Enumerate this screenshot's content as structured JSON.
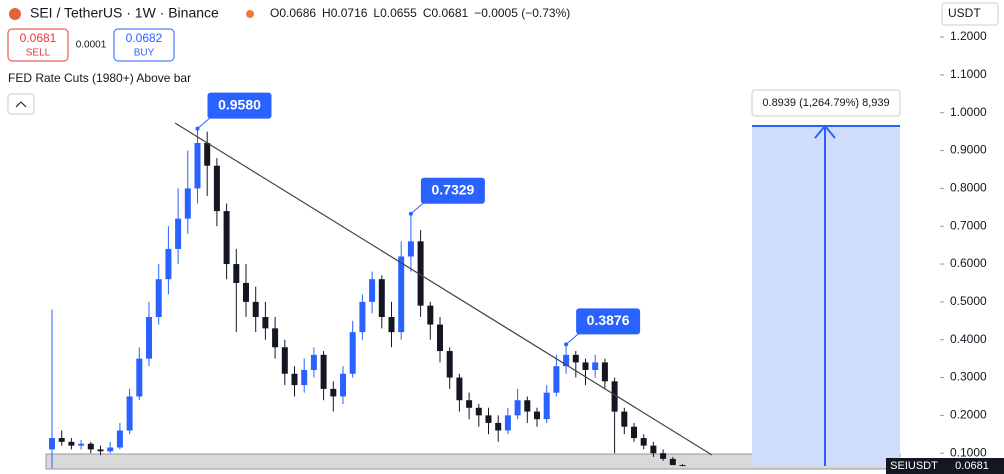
{
  "header": {
    "symbol": "SEI / TetherUS · 1W · Binance",
    "ohlc": [
      "O0.0686",
      "H0.0716",
      "L0.0655",
      "C0.0681",
      "−0.0005 (−0.73%)"
    ],
    "sell_price": "0.0681",
    "sell": "SELL",
    "spread": "0.0001",
    "buy_price": "0.0682",
    "buy": "BUY",
    "indicator": "FED Rate Cuts (1980+) Above bar",
    "currency": "USDT",
    "measure": "0.8939 (1,264.79%) 8,939",
    "price_tag": {
      "symbol": "SEIUSDT",
      "price": "0.0681"
    }
  },
  "chart_data": {
    "type": "candlestick",
    "up_color": "#2962ff",
    "down_color": "#131722",
    "open": [
      0.11,
      0.14,
      0.13,
      0.12,
      0.125,
      0.11,
      0.105,
      0.115,
      0.16,
      0.25,
      0.35,
      0.46,
      0.56,
      0.64,
      0.72,
      0.8,
      0.92,
      0.86,
      0.74,
      0.6,
      0.55,
      0.5,
      0.46,
      0.43,
      0.38,
      0.31,
      0.28,
      0.32,
      0.36,
      0.27,
      0.25,
      0.31,
      0.42,
      0.5,
      0.56,
      0.46,
      0.42,
      0.62,
      0.66,
      0.49,
      0.44,
      0.37,
      0.3,
      0.24,
      0.22,
      0.2,
      0.18,
      0.16,
      0.2,
      0.24,
      0.21,
      0.19,
      0.26,
      0.33,
      0.36,
      0.34,
      0.32,
      0.34,
      0.29,
      0.21,
      0.17,
      0.14,
      0.12,
      0.1,
      0.085,
      0.0686
    ],
    "high": [
      0.48,
      0.16,
      0.14,
      0.135,
      0.13,
      0.12,
      0.13,
      0.18,
      0.27,
      0.38,
      0.5,
      0.6,
      0.7,
      0.8,
      0.9,
      0.958,
      0.95,
      0.88,
      0.76,
      0.64,
      0.6,
      0.54,
      0.5,
      0.46,
      0.4,
      0.33,
      0.35,
      0.38,
      0.37,
      0.29,
      0.33,
      0.45,
      0.52,
      0.58,
      0.57,
      0.5,
      0.66,
      0.7329,
      0.69,
      0.5,
      0.46,
      0.38,
      0.31,
      0.26,
      0.23,
      0.22,
      0.2,
      0.22,
      0.27,
      0.25,
      0.22,
      0.28,
      0.36,
      0.3876,
      0.37,
      0.35,
      0.36,
      0.35,
      0.3,
      0.22,
      0.18,
      0.15,
      0.13,
      0.11,
      0.09,
      0.0716
    ],
    "low": [
      0.06,
      0.12,
      0.11,
      0.11,
      0.1,
      0.095,
      0.1,
      0.11,
      0.15,
      0.24,
      0.33,
      0.44,
      0.52,
      0.6,
      0.68,
      0.76,
      0.78,
      0.7,
      0.56,
      0.42,
      0.46,
      0.42,
      0.4,
      0.35,
      0.28,
      0.25,
      0.26,
      0.3,
      0.24,
      0.21,
      0.23,
      0.3,
      0.4,
      0.47,
      0.43,
      0.38,
      0.4,
      0.58,
      0.46,
      0.4,
      0.34,
      0.27,
      0.21,
      0.19,
      0.17,
      0.15,
      0.13,
      0.15,
      0.19,
      0.18,
      0.17,
      0.18,
      0.25,
      0.31,
      0.3,
      0.28,
      0.3,
      0.27,
      0.1,
      0.15,
      0.13,
      0.11,
      0.09,
      0.08,
      0.07,
      0.0655
    ],
    "close": [
      0.14,
      0.13,
      0.12,
      0.125,
      0.11,
      0.105,
      0.115,
      0.16,
      0.25,
      0.35,
      0.46,
      0.56,
      0.64,
      0.72,
      0.8,
      0.92,
      0.86,
      0.74,
      0.6,
      0.55,
      0.5,
      0.46,
      0.43,
      0.38,
      0.31,
      0.28,
      0.32,
      0.36,
      0.27,
      0.25,
      0.31,
      0.42,
      0.5,
      0.56,
      0.46,
      0.42,
      0.62,
      0.66,
      0.49,
      0.44,
      0.37,
      0.3,
      0.24,
      0.22,
      0.2,
      0.18,
      0.16,
      0.2,
      0.24,
      0.21,
      0.19,
      0.26,
      0.33,
      0.36,
      0.34,
      0.32,
      0.34,
      0.29,
      0.21,
      0.17,
      0.14,
      0.12,
      0.1,
      0.085,
      0.0686,
      0.0681
    ],
    "annotations": [
      {
        "value": 0.958,
        "label": "0.9580"
      },
      {
        "value": 0.7329,
        "label": "0.7329"
      },
      {
        "value": 0.3876,
        "label": "0.3876"
      }
    ],
    "ylim": [
      0.045,
      1.298
    ],
    "yticks": [
      {
        "value": 0.1,
        "label": "0.1000"
      },
      {
        "value": 0.2,
        "label": "0.2000"
      },
      {
        "value": 0.3,
        "label": "0.3000"
      },
      {
        "value": 0.4,
        "label": "0.4000"
      },
      {
        "value": 0.5,
        "label": "0.5000"
      },
      {
        "value": 0.6,
        "label": "0.6000"
      },
      {
        "value": 0.7,
        "label": "0.7000"
      },
      {
        "value": 0.8,
        "label": "0.8000"
      },
      {
        "value": 0.9,
        "label": "0.9000"
      },
      {
        "value": 1.0,
        "label": "1.0000"
      },
      {
        "value": 1.1,
        "label": "1.1000"
      },
      {
        "value": 1.2,
        "label": "1.2000"
      }
    ]
  }
}
